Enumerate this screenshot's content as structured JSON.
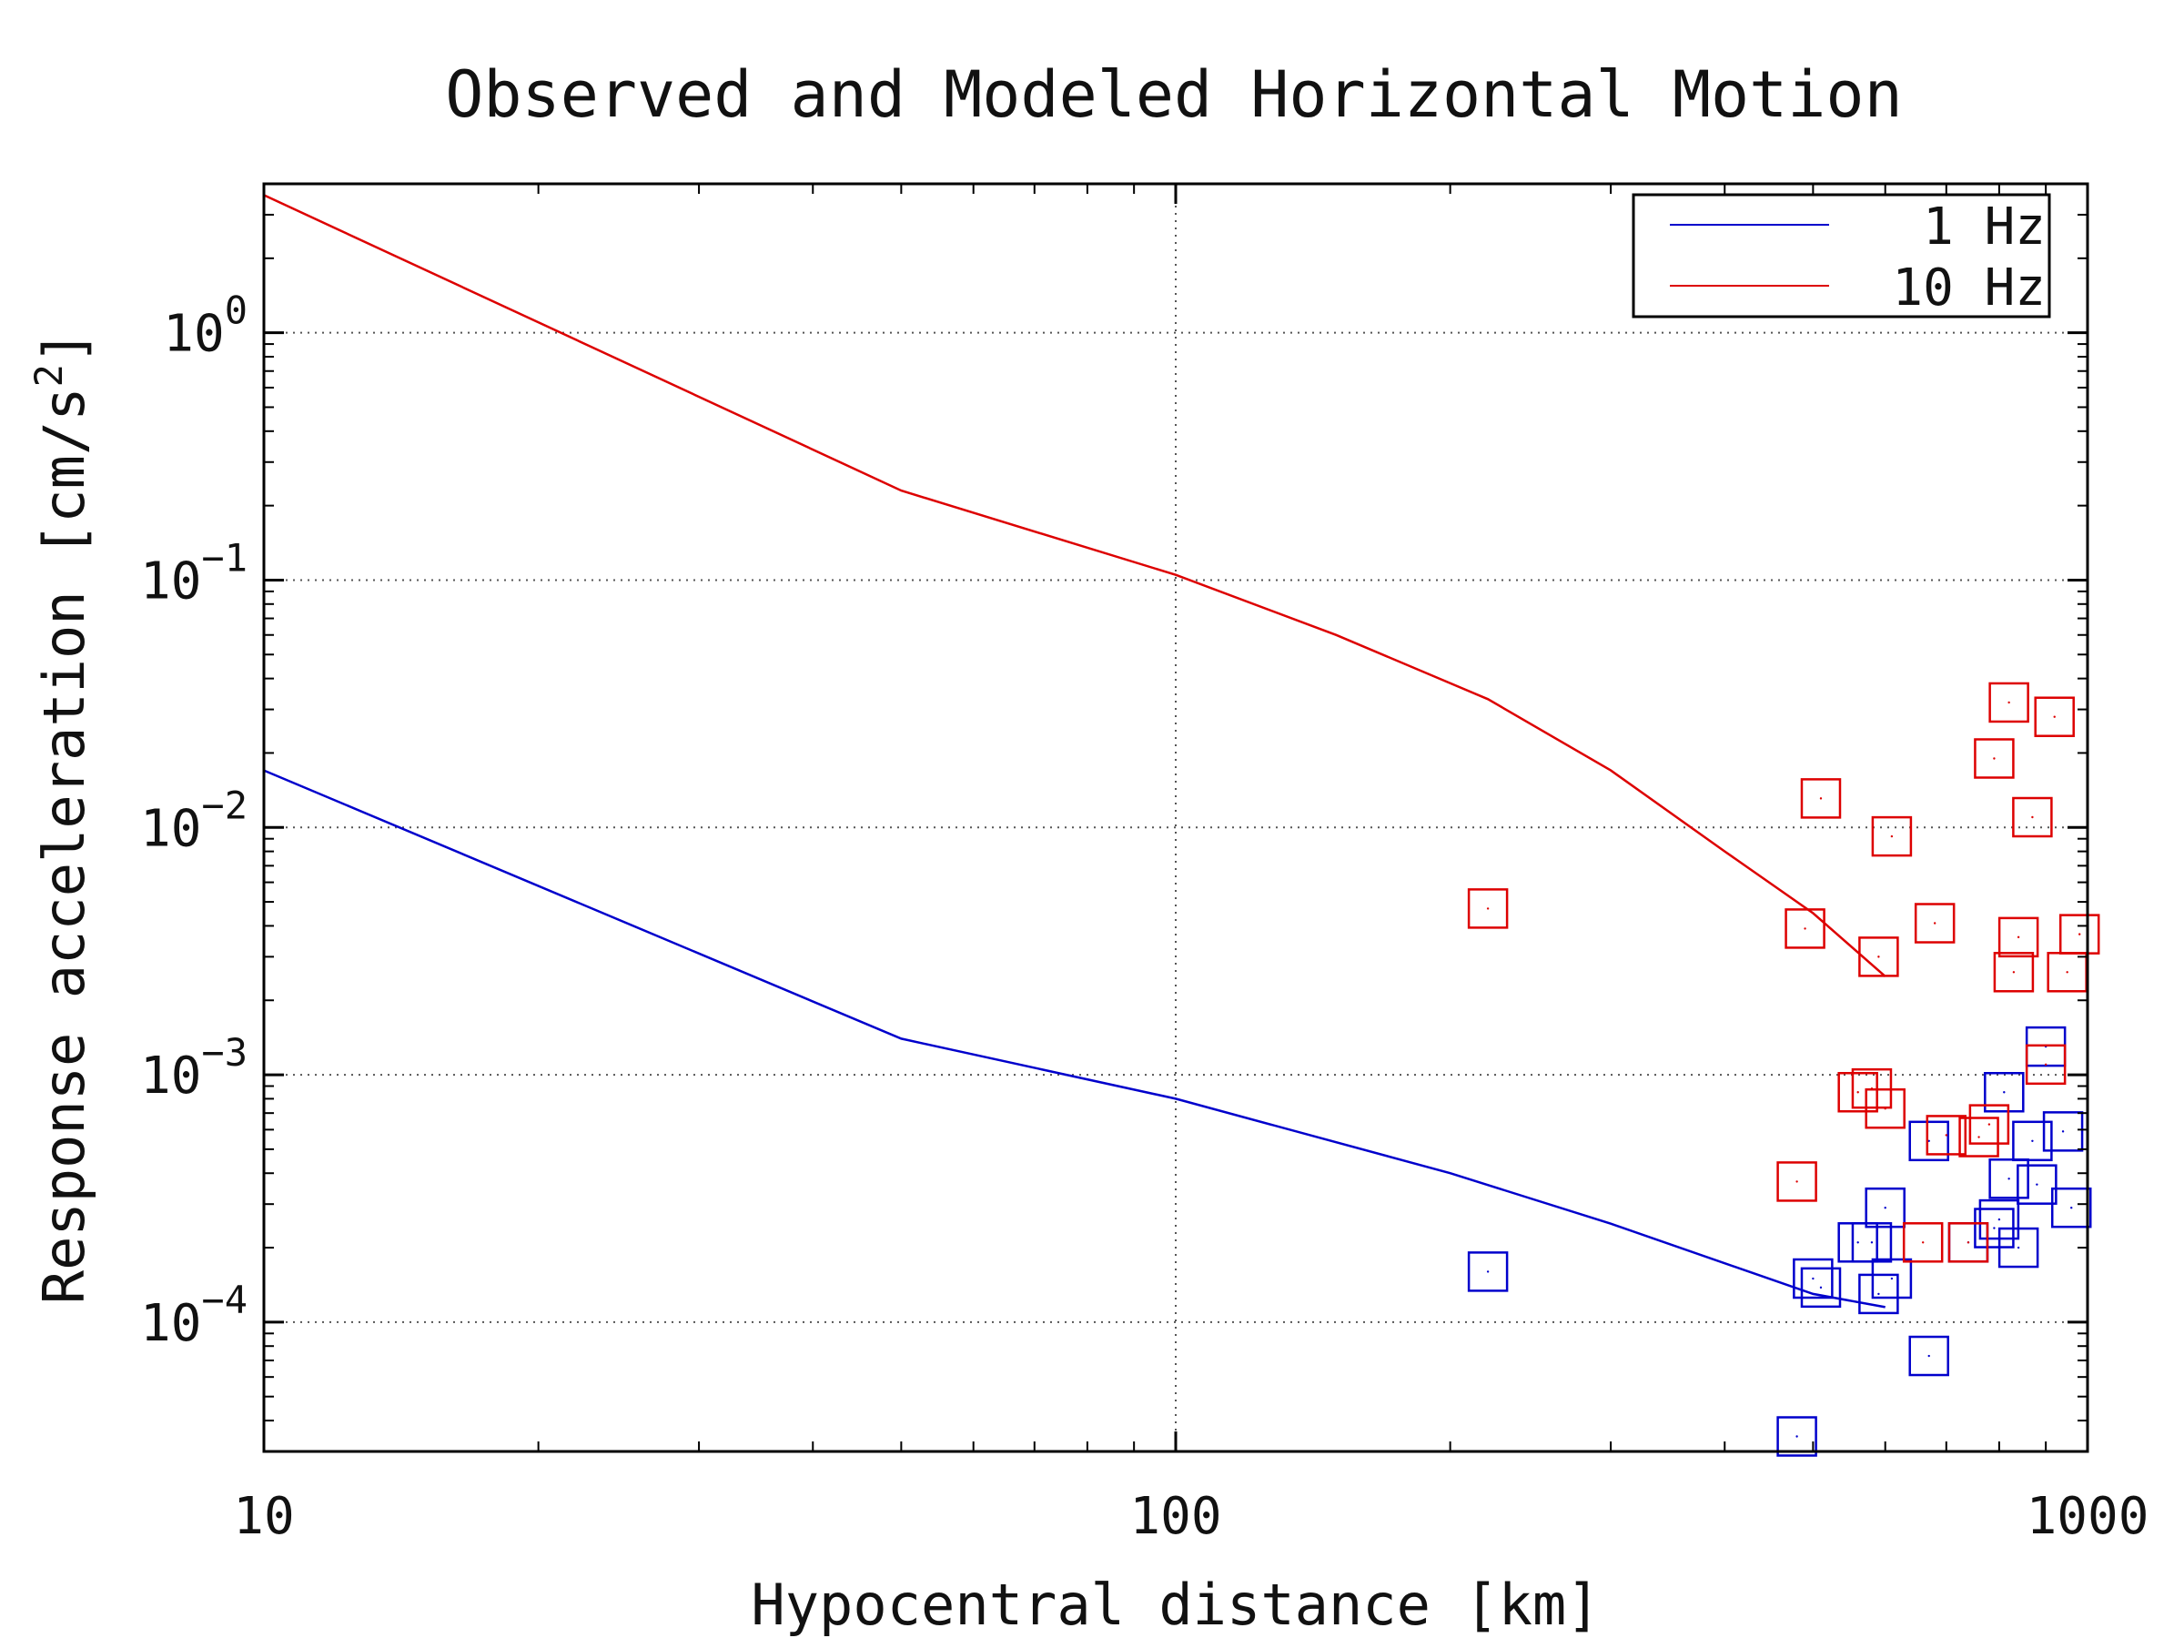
{
  "chart_data": {
    "type": "scatter",
    "title": "Observed and Modeled Horizontal Motion",
    "xlabel": "Hypocentral distance [km]",
    "ylabel_text": "Response acceleration [cm/s",
    "ylabel_sup": "2",
    "ylabel_close": "]",
    "x_scale": "log",
    "y_scale": "log",
    "xlim": [
      10,
      1000
    ],
    "ylim": [
      3e-05,
      4
    ],
    "x_ticks": [
      {
        "value": 10,
        "label": "10"
      },
      {
        "value": 100,
        "label": "100"
      },
      {
        "value": 1000,
        "label": "1000"
      }
    ],
    "y_ticks": [
      {
        "value": 1,
        "base": "10",
        "exp": "0"
      },
      {
        "value": 0.1,
        "base": "10",
        "exp": "−1"
      },
      {
        "value": 0.01,
        "base": "10",
        "exp": "−2"
      },
      {
        "value": 0.001,
        "base": "10",
        "exp": "−3"
      },
      {
        "value": 0.0001,
        "base": "10",
        "exp": "−4"
      }
    ],
    "grid": true,
    "legend_position": "top-right",
    "series": [
      {
        "name": "1 Hz",
        "color": "#0000cc",
        "line": [
          [
            10,
            0.017
          ],
          [
            50,
            0.0014
          ],
          [
            100,
            0.0008
          ],
          [
            200,
            0.0004
          ],
          [
            300,
            0.00025
          ],
          [
            500,
            0.00013
          ],
          [
            600,
            0.000115
          ]
        ],
        "points": [
          [
            220,
            0.00016
          ],
          [
            480,
            3.45e-05
          ],
          [
            500,
            0.00015
          ],
          [
            510,
            0.000138
          ],
          [
            560,
            0.00021
          ],
          [
            580,
            0.00021
          ],
          [
            590,
            0.00013
          ],
          [
            600,
            0.00029
          ],
          [
            610,
            0.00015
          ],
          [
            670,
            7.3e-05
          ],
          [
            670,
            0.00054
          ],
          [
            740,
            0.00021
          ],
          [
            790,
            0.00024
          ],
          [
            800,
            0.00026
          ],
          [
            810,
            0.00085
          ],
          [
            820,
            0.00038
          ],
          [
            840,
            0.0002
          ],
          [
            870,
            0.00054
          ],
          [
            880,
            0.00036
          ],
          [
            900,
            0.0013
          ],
          [
            940,
            0.00059
          ],
          [
            960,
            0.00029
          ]
        ]
      },
      {
        "name": "10 Hz",
        "color": "#dd0000",
        "line": [
          [
            10,
            3.6
          ],
          [
            50,
            0.23
          ],
          [
            100,
            0.105
          ],
          [
            150,
            0.06
          ],
          [
            220,
            0.033
          ],
          [
            300,
            0.017
          ],
          [
            400,
            0.008
          ],
          [
            500,
            0.0045
          ],
          [
            600,
            0.0025
          ]
        ],
        "points": [
          [
            220,
            0.0047
          ],
          [
            480,
            0.00037
          ],
          [
            490,
            0.0039
          ],
          [
            510,
            0.0131
          ],
          [
            560,
            0.00085
          ],
          [
            580,
            0.00088
          ],
          [
            590,
            0.003
          ],
          [
            600,
            0.00073
          ],
          [
            610,
            0.0092
          ],
          [
            660,
            0.00021
          ],
          [
            680,
            0.0041
          ],
          [
            700,
            0.00057
          ],
          [
            740,
            0.00021
          ],
          [
            760,
            0.00056
          ],
          [
            780,
            0.00063
          ],
          [
            790,
            0.019
          ],
          [
            820,
            0.032
          ],
          [
            830,
            0.0026
          ],
          [
            840,
            0.0036
          ],
          [
            870,
            0.011
          ],
          [
            900,
            0.0011
          ],
          [
            920,
            0.028
          ],
          [
            950,
            0.0026
          ],
          [
            980,
            0.0037
          ]
        ]
      }
    ]
  }
}
